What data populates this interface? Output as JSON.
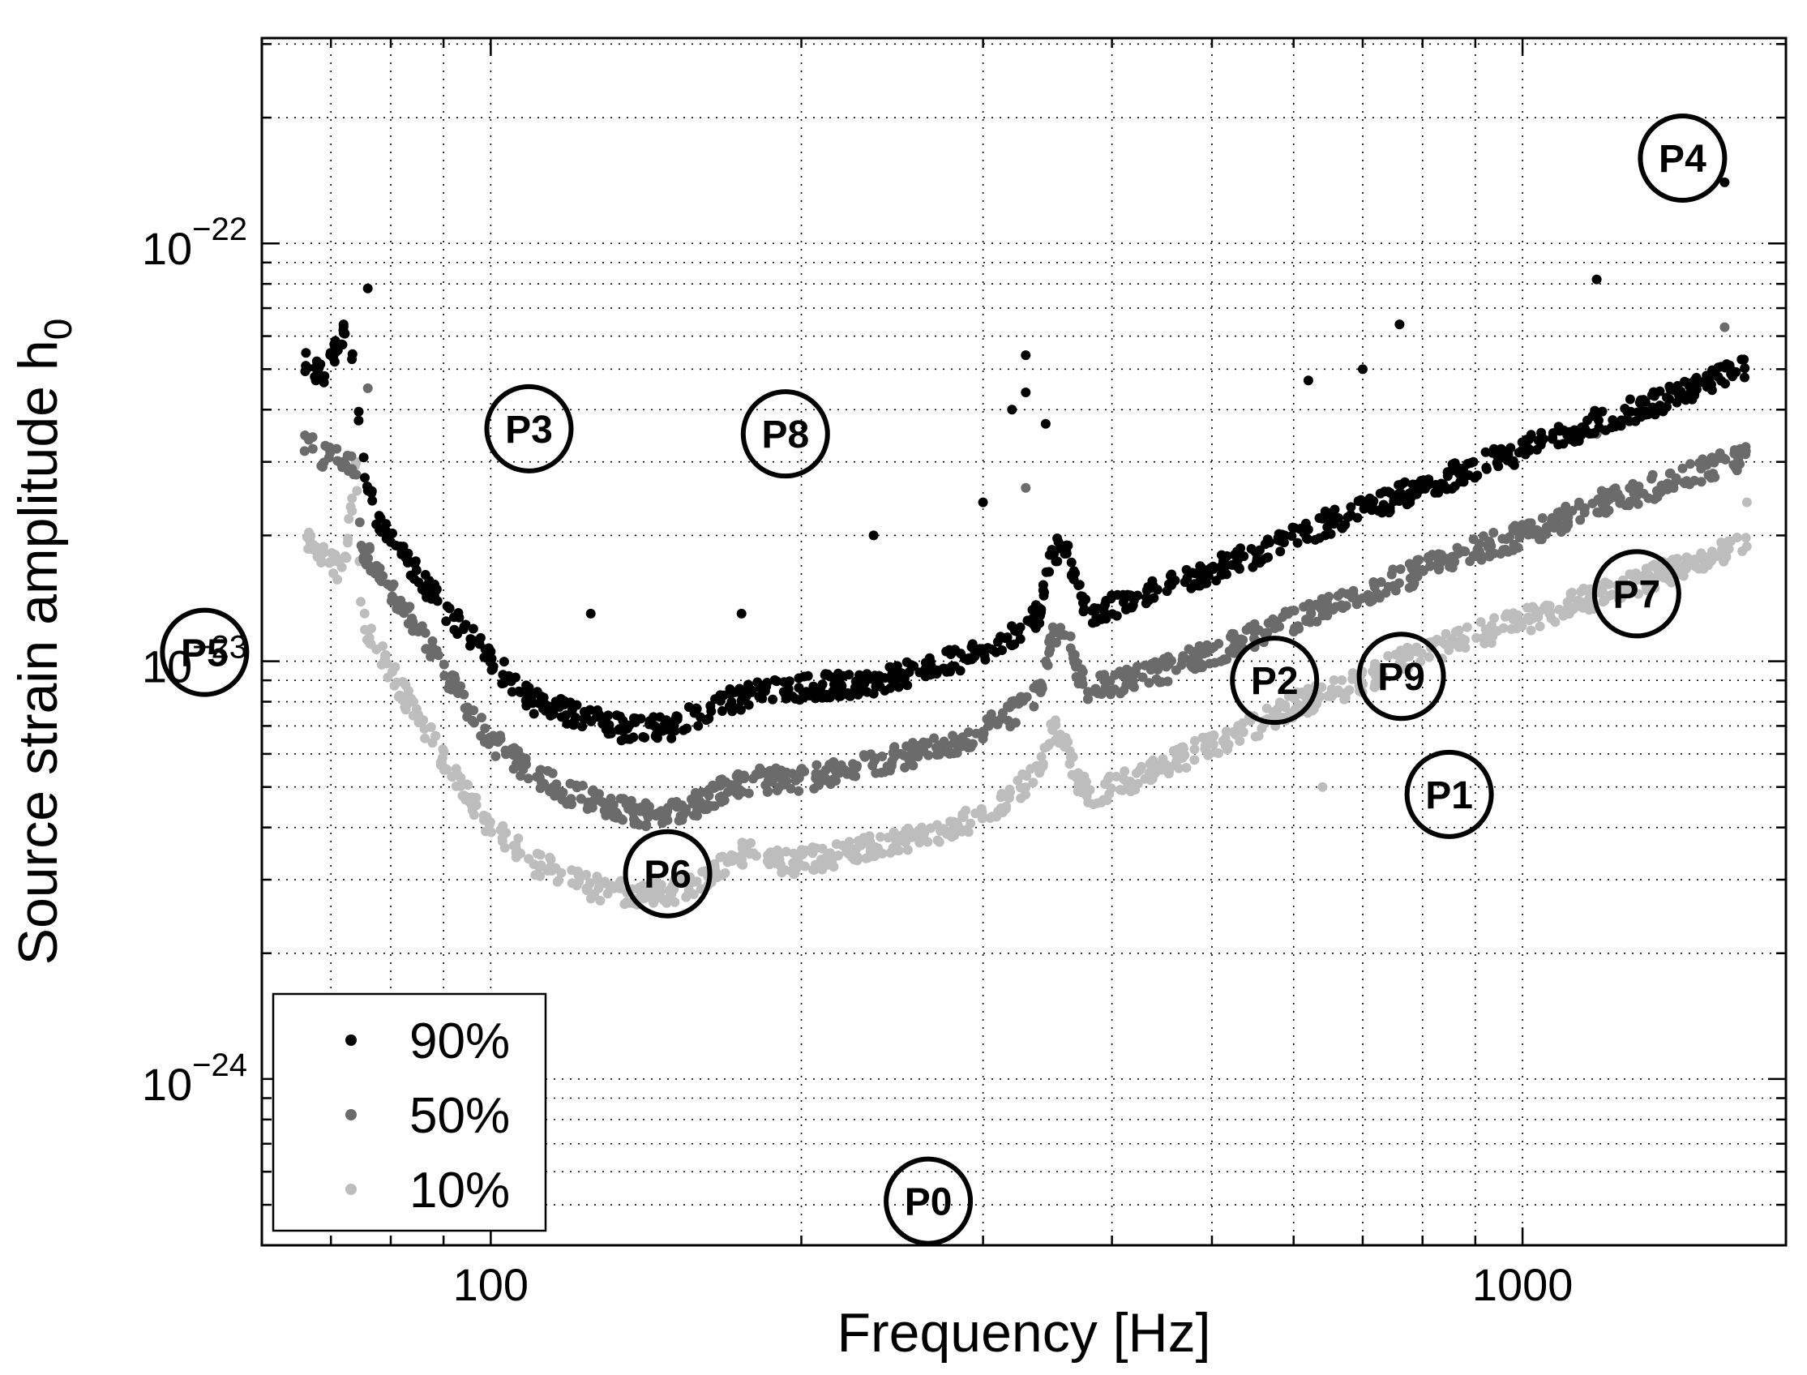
{
  "chart_data": {
    "type": "scatter",
    "xscale": "log",
    "yscale": "log",
    "xlim": [
      60,
      1800
    ],
    "ylim": [
      4e-25,
      3.1e-22
    ],
    "xlabel": "Frequency [Hz]",
    "ylabel": "Source strain amplitude  h",
    "ylabel_subscript": "0",
    "x_ticks": [
      {
        "value": 100,
        "label": "100"
      },
      {
        "value": 1000,
        "label": "1000"
      }
    ],
    "y_ticks": [
      {
        "value": 1e-24,
        "base": "10",
        "exp": "−24"
      },
      {
        "value": 1e-23,
        "base": "10",
        "exp": "−23"
      },
      {
        "value": 1e-22,
        "base": "10",
        "exp": "−22"
      }
    ],
    "grid": true,
    "legend_position": "bottom-left",
    "series": [
      {
        "name": "90%",
        "color": "#000000",
        "curve": [
          [
            66,
            5.2e-23
          ],
          [
            69,
            4.8e-23
          ],
          [
            72,
            6.2e-23
          ],
          [
            74,
            5e-23
          ],
          [
            75,
            3e-23
          ],
          [
            78,
            2.1e-23
          ],
          [
            82,
            1.8e-23
          ],
          [
            90,
            1.35e-23
          ],
          [
            100,
            1e-23
          ],
          [
            110,
            8e-24
          ],
          [
            120,
            7.5e-24
          ],
          [
            130,
            7e-24
          ],
          [
            140,
            6.8e-24
          ],
          [
            150,
            7e-24
          ],
          [
            160,
            7.5e-24
          ],
          [
            170,
            8e-24
          ],
          [
            180,
            8.3e-24
          ],
          [
            200,
            8.6e-24
          ],
          [
            220,
            8.8e-24
          ],
          [
            240,
            9e-24
          ],
          [
            260,
            9.5e-24
          ],
          [
            280,
            1e-23
          ],
          [
            300,
            1.05e-23
          ],
          [
            320,
            1.15e-23
          ],
          [
            340,
            1.3e-23
          ],
          [
            350,
            1.8e-23
          ],
          [
            360,
            1.9e-23
          ],
          [
            370,
            1.5e-23
          ],
          [
            380,
            1.3e-23
          ],
          [
            400,
            1.35e-23
          ],
          [
            450,
            1.5e-23
          ],
          [
            500,
            1.65e-23
          ],
          [
            550,
            1.8e-23
          ],
          [
            600,
            2e-23
          ],
          [
            700,
            2.3e-23
          ],
          [
            800,
            2.6e-23
          ],
          [
            900,
            2.9e-23
          ],
          [
            1000,
            3.2e-23
          ],
          [
            1200,
            3.8e-23
          ],
          [
            1400,
            4.3e-23
          ],
          [
            1500,
            4.6e-23
          ],
          [
            1650,
            5e-23
          ]
        ],
        "spikes": [
          [
            76,
            7.8e-23
          ],
          [
            72,
            6.4e-23
          ],
          [
            330,
            5.4e-23
          ],
          [
            330,
            4.4e-23
          ],
          [
            620,
            4.7e-23
          ],
          [
            700,
            5e-23
          ],
          [
            760,
            6.4e-23
          ],
          [
            1180,
            8.2e-23
          ],
          [
            1570,
            1.4e-22
          ],
          [
            125,
            1.3e-23
          ],
          [
            175,
            1.3e-23
          ],
          [
            235,
            2e-23
          ],
          [
            345,
            3.7e-23
          ],
          [
            300,
            2.4e-23
          ],
          [
            320,
            4e-23
          ]
        ]
      },
      {
        "name": "50%",
        "color": "#6b6b6b",
        "curve": [
          [
            66,
            3.3e-23
          ],
          [
            69,
            3.1e-23
          ],
          [
            72,
            3e-23
          ],
          [
            74,
            2.9e-23
          ],
          [
            75,
            1.9e-23
          ],
          [
            78,
            1.6e-23
          ],
          [
            82,
            1.35e-23
          ],
          [
            90,
            9.5e-24
          ],
          [
            100,
            6.5e-24
          ],
          [
            110,
            5.3e-24
          ],
          [
            120,
            4.8e-24
          ],
          [
            130,
            4.5e-24
          ],
          [
            140,
            4.3e-24
          ],
          [
            150,
            4.3e-24
          ],
          [
            160,
            4.6e-24
          ],
          [
            170,
            5e-24
          ],
          [
            180,
            5.2e-24
          ],
          [
            200,
            5.2e-24
          ],
          [
            220,
            5.5e-24
          ],
          [
            240,
            5.8e-24
          ],
          [
            260,
            6e-24
          ],
          [
            280,
            6.3e-24
          ],
          [
            300,
            6.8e-24
          ],
          [
            320,
            7.5e-24
          ],
          [
            340,
            8.5e-24
          ],
          [
            350,
            1.15e-23
          ],
          [
            360,
            1.2e-23
          ],
          [
            370,
            9.5e-24
          ],
          [
            380,
            8.5e-24
          ],
          [
            400,
            8.8e-24
          ],
          [
            450,
            9.5e-24
          ],
          [
            500,
            1.05e-23
          ],
          [
            550,
            1.15e-23
          ],
          [
            600,
            1.25e-23
          ],
          [
            700,
            1.45e-23
          ],
          [
            800,
            1.65e-23
          ],
          [
            900,
            1.85e-23
          ],
          [
            1000,
            2e-23
          ],
          [
            1200,
            2.4e-23
          ],
          [
            1400,
            2.7e-23
          ],
          [
            1650,
            3.1e-23
          ]
        ],
        "spikes": [
          [
            76,
            4.5e-23
          ],
          [
            1570,
            6.3e-23
          ],
          [
            330,
            2.6e-23
          ],
          [
            1180,
            3.5e-23
          ]
        ]
      },
      {
        "name": "10%",
        "color": "#bdbdbd",
        "curve": [
          [
            66,
            2e-23
          ],
          [
            69,
            1.8e-23
          ],
          [
            72,
            1.6e-23
          ],
          [
            74,
            2.9e-23
          ],
          [
            75,
            1.25e-23
          ],
          [
            78,
            1.05e-23
          ],
          [
            82,
            8.5e-24
          ],
          [
            90,
            5.8e-24
          ],
          [
            100,
            4e-24
          ],
          [
            110,
            3.3e-24
          ],
          [
            120,
            3e-24
          ],
          [
            130,
            2.8e-24
          ],
          [
            140,
            2.8e-24
          ],
          [
            150,
            2.8e-24
          ],
          [
            160,
            3e-24
          ],
          [
            170,
            3.3e-24
          ],
          [
            180,
            3.6e-24
          ],
          [
            190,
            3.3e-24
          ],
          [
            200,
            3.3e-24
          ],
          [
            220,
            3.5e-24
          ],
          [
            240,
            3.7e-24
          ],
          [
            260,
            3.8e-24
          ],
          [
            280,
            4e-24
          ],
          [
            300,
            4.3e-24
          ],
          [
            320,
            4.8e-24
          ],
          [
            340,
            5.5e-24
          ],
          [
            350,
            7e-24
          ],
          [
            360,
            6.5e-24
          ],
          [
            370,
            5.2e-24
          ],
          [
            380,
            4.8e-24
          ],
          [
            400,
            5e-24
          ],
          [
            450,
            5.6e-24
          ],
          [
            500,
            6.3e-24
          ],
          [
            550,
            7e-24
          ],
          [
            600,
            7.8e-24
          ],
          [
            700,
            9e-24
          ],
          [
            800,
            1.05e-23
          ],
          [
            900,
            1.15e-23
          ],
          [
            1000,
            1.25e-23
          ],
          [
            1200,
            1.45e-23
          ],
          [
            1400,
            1.65e-23
          ],
          [
            1650,
            1.9e-23
          ]
        ],
        "spikes": [
          [
            74,
            3e-23
          ],
          [
            640,
            5e-24
          ],
          [
            1650,
            2.4e-23
          ]
        ]
      }
    ],
    "pulsars": [
      {
        "label": "P0",
        "x": 265.5,
        "y": 5.1e-25
      },
      {
        "label": "P1",
        "x": 849.0,
        "y": 4.8e-24
      },
      {
        "label": "P2",
        "x": 575.0,
        "y": 9e-24
      },
      {
        "label": "P3",
        "x": 108.9,
        "y": 3.6e-23
      },
      {
        "label": "P4",
        "x": 1429.0,
        "y": 1.6e-22
      },
      {
        "label": "P5",
        "x": 52.8,
        "y": 1.05e-23
      },
      {
        "label": "P6",
        "x": 148.4,
        "y": 3.1e-24
      },
      {
        "label": "P7",
        "x": 1290.0,
        "y": 1.45e-23
      },
      {
        "label": "P8",
        "x": 193.0,
        "y": 3.5e-23
      },
      {
        "label": "P9",
        "x": 763.0,
        "y": 9.2e-24
      }
    ]
  }
}
